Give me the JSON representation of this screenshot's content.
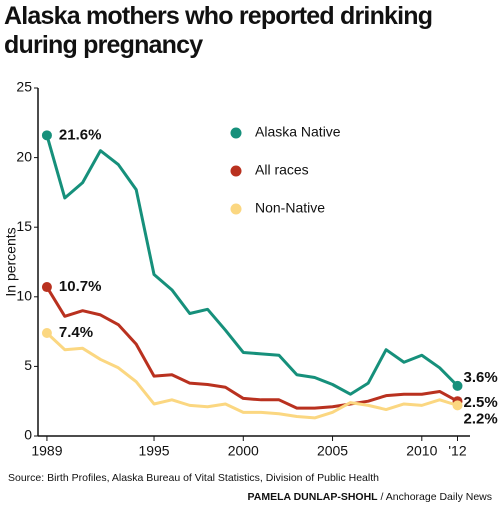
{
  "chart_data": {
    "type": "line",
    "title": "Alaska mothers who reported drinking during pregnancy",
    "ylabel": "In percents",
    "x": [
      1989,
      1990,
      1991,
      1992,
      1993,
      1994,
      1995,
      1996,
      1997,
      1998,
      1999,
      2000,
      2001,
      2002,
      2003,
      2004,
      2005,
      2006,
      2007,
      2008,
      2009,
      2010,
      2011,
      2012
    ],
    "series": [
      {
        "name": "Alaska Native",
        "color": "#16907b",
        "values": [
          21.6,
          17.1,
          18.2,
          20.5,
          19.5,
          17.7,
          11.6,
          10.5,
          8.8,
          9.1,
          7.6,
          6.0,
          5.9,
          5.8,
          4.4,
          4.2,
          3.7,
          3.0,
          3.8,
          6.2,
          5.3,
          5.8,
          4.9,
          3.6
        ],
        "value_labels": [
          "21.6%",
          null,
          null,
          null,
          null,
          null,
          null,
          null,
          null,
          null,
          null,
          null,
          null,
          null,
          null,
          null,
          null,
          null,
          null,
          null,
          null,
          null,
          null,
          "3.6%"
        ]
      },
      {
        "name": "All races",
        "color": "#b9311f",
        "values": [
          10.7,
          8.6,
          9.0,
          8.7,
          8.0,
          6.6,
          4.3,
          4.4,
          3.8,
          3.7,
          3.5,
          2.7,
          2.6,
          2.6,
          2.0,
          2.0,
          2.1,
          2.3,
          2.5,
          2.9,
          3.0,
          3.0,
          3.2,
          2.5
        ],
        "value_labels": [
          "10.7%",
          null,
          null,
          null,
          null,
          null,
          null,
          null,
          null,
          null,
          null,
          null,
          null,
          null,
          null,
          null,
          null,
          null,
          null,
          null,
          null,
          null,
          null,
          "2.5%"
        ]
      },
      {
        "name": "Non-Native",
        "color": "#fbd781",
        "values": [
          7.4,
          6.2,
          6.3,
          5.5,
          4.9,
          3.9,
          2.3,
          2.6,
          2.2,
          2.1,
          2.3,
          1.7,
          1.7,
          1.6,
          1.4,
          1.3,
          1.7,
          2.4,
          2.2,
          1.9,
          2.3,
          2.2,
          2.6,
          2.2
        ],
        "value_labels": [
          "7.4%",
          null,
          null,
          null,
          null,
          null,
          null,
          null,
          null,
          null,
          null,
          null,
          null,
          null,
          null,
          null,
          null,
          null,
          null,
          null,
          null,
          null,
          null,
          "2.2%"
        ]
      }
    ],
    "xlim": [
      1988.5,
      2012.7
    ],
    "ylim": [
      0,
      25
    ],
    "xticks": [
      1989,
      1995,
      2000,
      2005,
      2010,
      {
        "value": 2012,
        "label": "'12"
      }
    ],
    "yticks": [
      0,
      5,
      10,
      15,
      20,
      25
    ],
    "legend": "top-right",
    "source": "Source: Birth Profiles, Alaska Bureau of Vital Statistics, Division of Public Health",
    "credit": {
      "author": "PAMELA DUNLAP-SHOHL",
      "outlet": "/ Anchorage Daily News"
    }
  }
}
